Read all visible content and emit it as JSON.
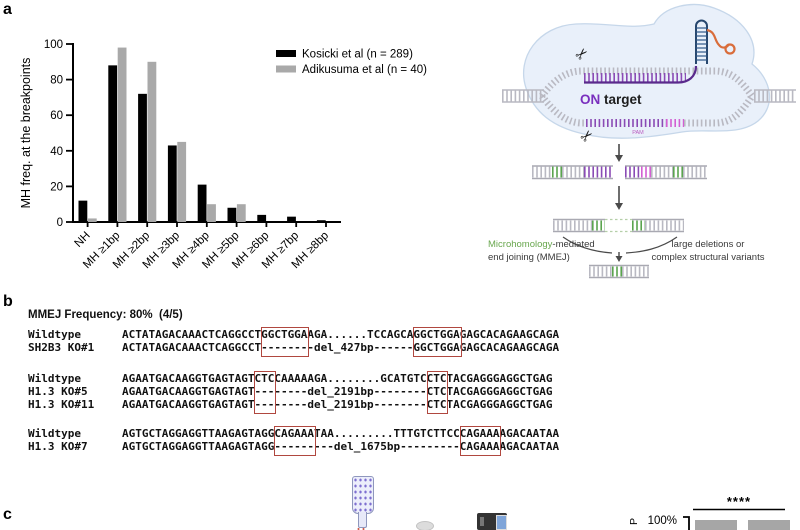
{
  "figure": {
    "panel_labels": {
      "a": "a",
      "b": "b",
      "c": "c"
    }
  },
  "chart_data": {
    "type": "bar",
    "title": "",
    "xlabel": "",
    "ylabel": "MH freq. at the breakpoints",
    "ylim": [
      0,
      100
    ],
    "yticks": [
      0,
      20,
      40,
      60,
      80,
      100
    ],
    "grid": false,
    "legend_position": "top-right",
    "categories": [
      "NH",
      "MH ≥1bp",
      "MH ≥2bp",
      "MH ≥3bp",
      "MH ≥4bp",
      "MH ≥5bp",
      "MH ≥6bp",
      "MH ≥7bp",
      "MH ≥8bp"
    ],
    "series": [
      {
        "name": "Kosicki et al (n = 289)",
        "color": "#000000",
        "values": [
          12,
          88,
          72,
          43,
          21,
          8,
          4,
          3,
          1
        ]
      },
      {
        "name": "Adikusuma et al (n = 40)",
        "color": "#a9a9a9",
        "values": [
          2,
          98,
          90,
          45,
          10,
          10,
          0,
          0,
          0
        ]
      }
    ]
  },
  "diagram": {
    "on_label": "ON",
    "target_label": " target",
    "pam_label": "PAM",
    "mmej_green": "Microhomology",
    "mmej_rest": "-mediated",
    "mmej_line2": "end joining (MMEJ)",
    "right_line1": "large deletions or",
    "right_line2": "complex structural variants",
    "colors": {
      "purple": "#7a2fbe",
      "dark_purple": "#5a2a8c",
      "magenta": "#d35fd3",
      "green": "#5aa44e",
      "gray": "#b9b9c2",
      "orange": "#d96d3b",
      "navy": "#27476e",
      "blob_fill": "#e9f0fa",
      "blob_stroke": "#c6d7ea"
    }
  },
  "panel_b": {
    "heading": "MMEJ Frequency: 80%  (4/5)",
    "box_color": "#b0473f",
    "groups": [
      {
        "rows": [
          {
            "label": "Wildtype",
            "seq": "ACTATAGACAAACTCAGGCCTGGCTGGAAGA......TCCAGCAGGCTGGAGAGCACAGAAGCAGA"
          },
          {
            "label": "SH2B3 KO#1",
            "seq": "ACTATAGACAAACTCAGGCCT--------del_427bp------GGCTGGAGAGCACAGAAGCAGA"
          }
        ],
        "boxes": [
          {
            "col": 21,
            "width": 7
          },
          {
            "col": 44,
            "width": 7
          }
        ]
      },
      {
        "rows": [
          {
            "label": "Wildtype",
            "seq": "AGAATGACAAGGTGAGTAGTCTCCAAAAAGA........GCATGTCCTCTACGAGGGAGGCTGAG"
          },
          {
            "label": "H1.3 KO#5",
            "seq": "AGAATGACAAGGTGAGTAGT--------del_2191bp--------CTCTACGAGGGAGGCTGAG"
          },
          {
            "label": "H1.3 KO#11",
            "seq": "AGAATGACAAGGTGAGTAGT--------del_2191bp--------CTCTACGAGGGAGGCTGAG"
          }
        ],
        "boxes": [
          {
            "col": 20,
            "width": 3
          },
          {
            "col": 46,
            "width": 3
          }
        ]
      },
      {
        "rows": [
          {
            "label": "Wildtype",
            "seq": "AGTGCTAGGAGGTTAAGAGTAGGCAGAAATAA.........TTTGTCTTCCCAGAAAAGACAATAA"
          },
          {
            "label": "H1.3 KO#7",
            "seq": "AGTGCTAGGAGGTTAAGAGTAGG---------del_1675bp---------CAGAAAAGACAATAA"
          }
        ],
        "boxes": [
          {
            "col": 23,
            "width": 6
          },
          {
            "col": 51,
            "width": 6
          }
        ]
      }
    ]
  },
  "panel_c": {
    "mini_chart": {
      "axis_label_partial": "P",
      "ytick_label": "100%",
      "sig_label": "****",
      "bar_color": "#a6a6a6"
    }
  }
}
